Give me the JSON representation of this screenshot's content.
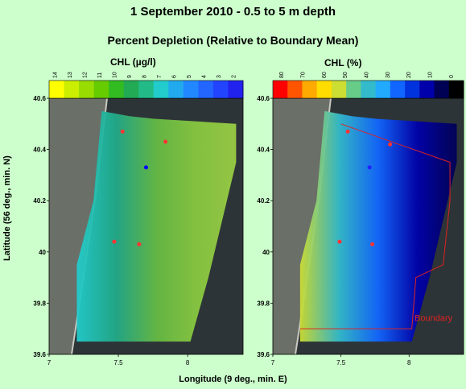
{
  "title": "1 September 2010 - 0.5 to 5 m depth",
  "subtitle": "Percent Depletion (Relative to Boundary Mean)",
  "xlabel": "Longitude (9 deg., min. E)",
  "ylabel": "Latitude (56 deg., min. N)",
  "chart_data": [
    {
      "type": "heatmap",
      "colorbar_label": "CHL (µg/l)",
      "colorbar_ticks": [
        "14",
        "13",
        "12",
        "11",
        "10",
        "9",
        "8",
        "7",
        "6",
        "5",
        "4",
        "3",
        "2"
      ],
      "colorbar_colors": [
        "#ffff00",
        "#ccee00",
        "#99dd00",
        "#66cc00",
        "#33bb22",
        "#22aa55",
        "#22bb88",
        "#22cccc",
        "#22aaee",
        "#2288ff",
        "#2266ff",
        "#2244ff",
        "#2222ee"
      ],
      "xlim": [
        7,
        8.4
      ],
      "ylim": [
        39.6,
        40.6
      ],
      "xticks": [
        "7",
        "7.5",
        "8"
      ],
      "yticks": [
        "39.6",
        "39.8",
        "40",
        "40.2",
        "40.4",
        "40.6"
      ],
      "background_color": "#88c840",
      "points": [
        {
          "x": 7.53,
          "y": 40.47,
          "color": "#ff3333"
        },
        {
          "x": 7.84,
          "y": 40.43,
          "color": "#ff3333"
        },
        {
          "x": 7.7,
          "y": 40.33,
          "color": "#0000ff"
        },
        {
          "x": 7.47,
          "y": 40.04,
          "color": "#ff3333"
        },
        {
          "x": 7.65,
          "y": 40.03,
          "color": "#ff3333"
        }
      ]
    },
    {
      "type": "heatmap",
      "colorbar_label": "CHL (%)",
      "colorbar_ticks": [
        "80",
        "70",
        "60",
        "50",
        "40",
        "30",
        "20",
        "10",
        "0"
      ],
      "colorbar_colors": [
        "#ff0000",
        "#ff5500",
        "#ffaa00",
        "#ffdd00",
        "#ccdd33",
        "#66cc88",
        "#33bbcc",
        "#22aaff",
        "#1166ff",
        "#0033dd",
        "#0000aa",
        "#000055",
        "#000000"
      ],
      "xlim": [
        7,
        8.4
      ],
      "ylim": [
        39.6,
        40.6
      ],
      "xticks": [
        "7",
        "7.5",
        "8"
      ],
      "yticks": [
        "39.6",
        "39.8",
        "40",
        "40.2",
        "40.4",
        "40.6"
      ],
      "annotation": "Boundary",
      "points": [
        {
          "x": 7.55,
          "y": 40.47,
          "color": "#ff3333"
        },
        {
          "x": 7.86,
          "y": 40.42,
          "color": "#ff3333"
        },
        {
          "x": 7.71,
          "y": 40.33,
          "color": "#2222ff"
        },
        {
          "x": 7.49,
          "y": 40.04,
          "color": "#ff3333"
        },
        {
          "x": 7.73,
          "y": 40.03,
          "color": "#ff3333"
        }
      ]
    }
  ]
}
